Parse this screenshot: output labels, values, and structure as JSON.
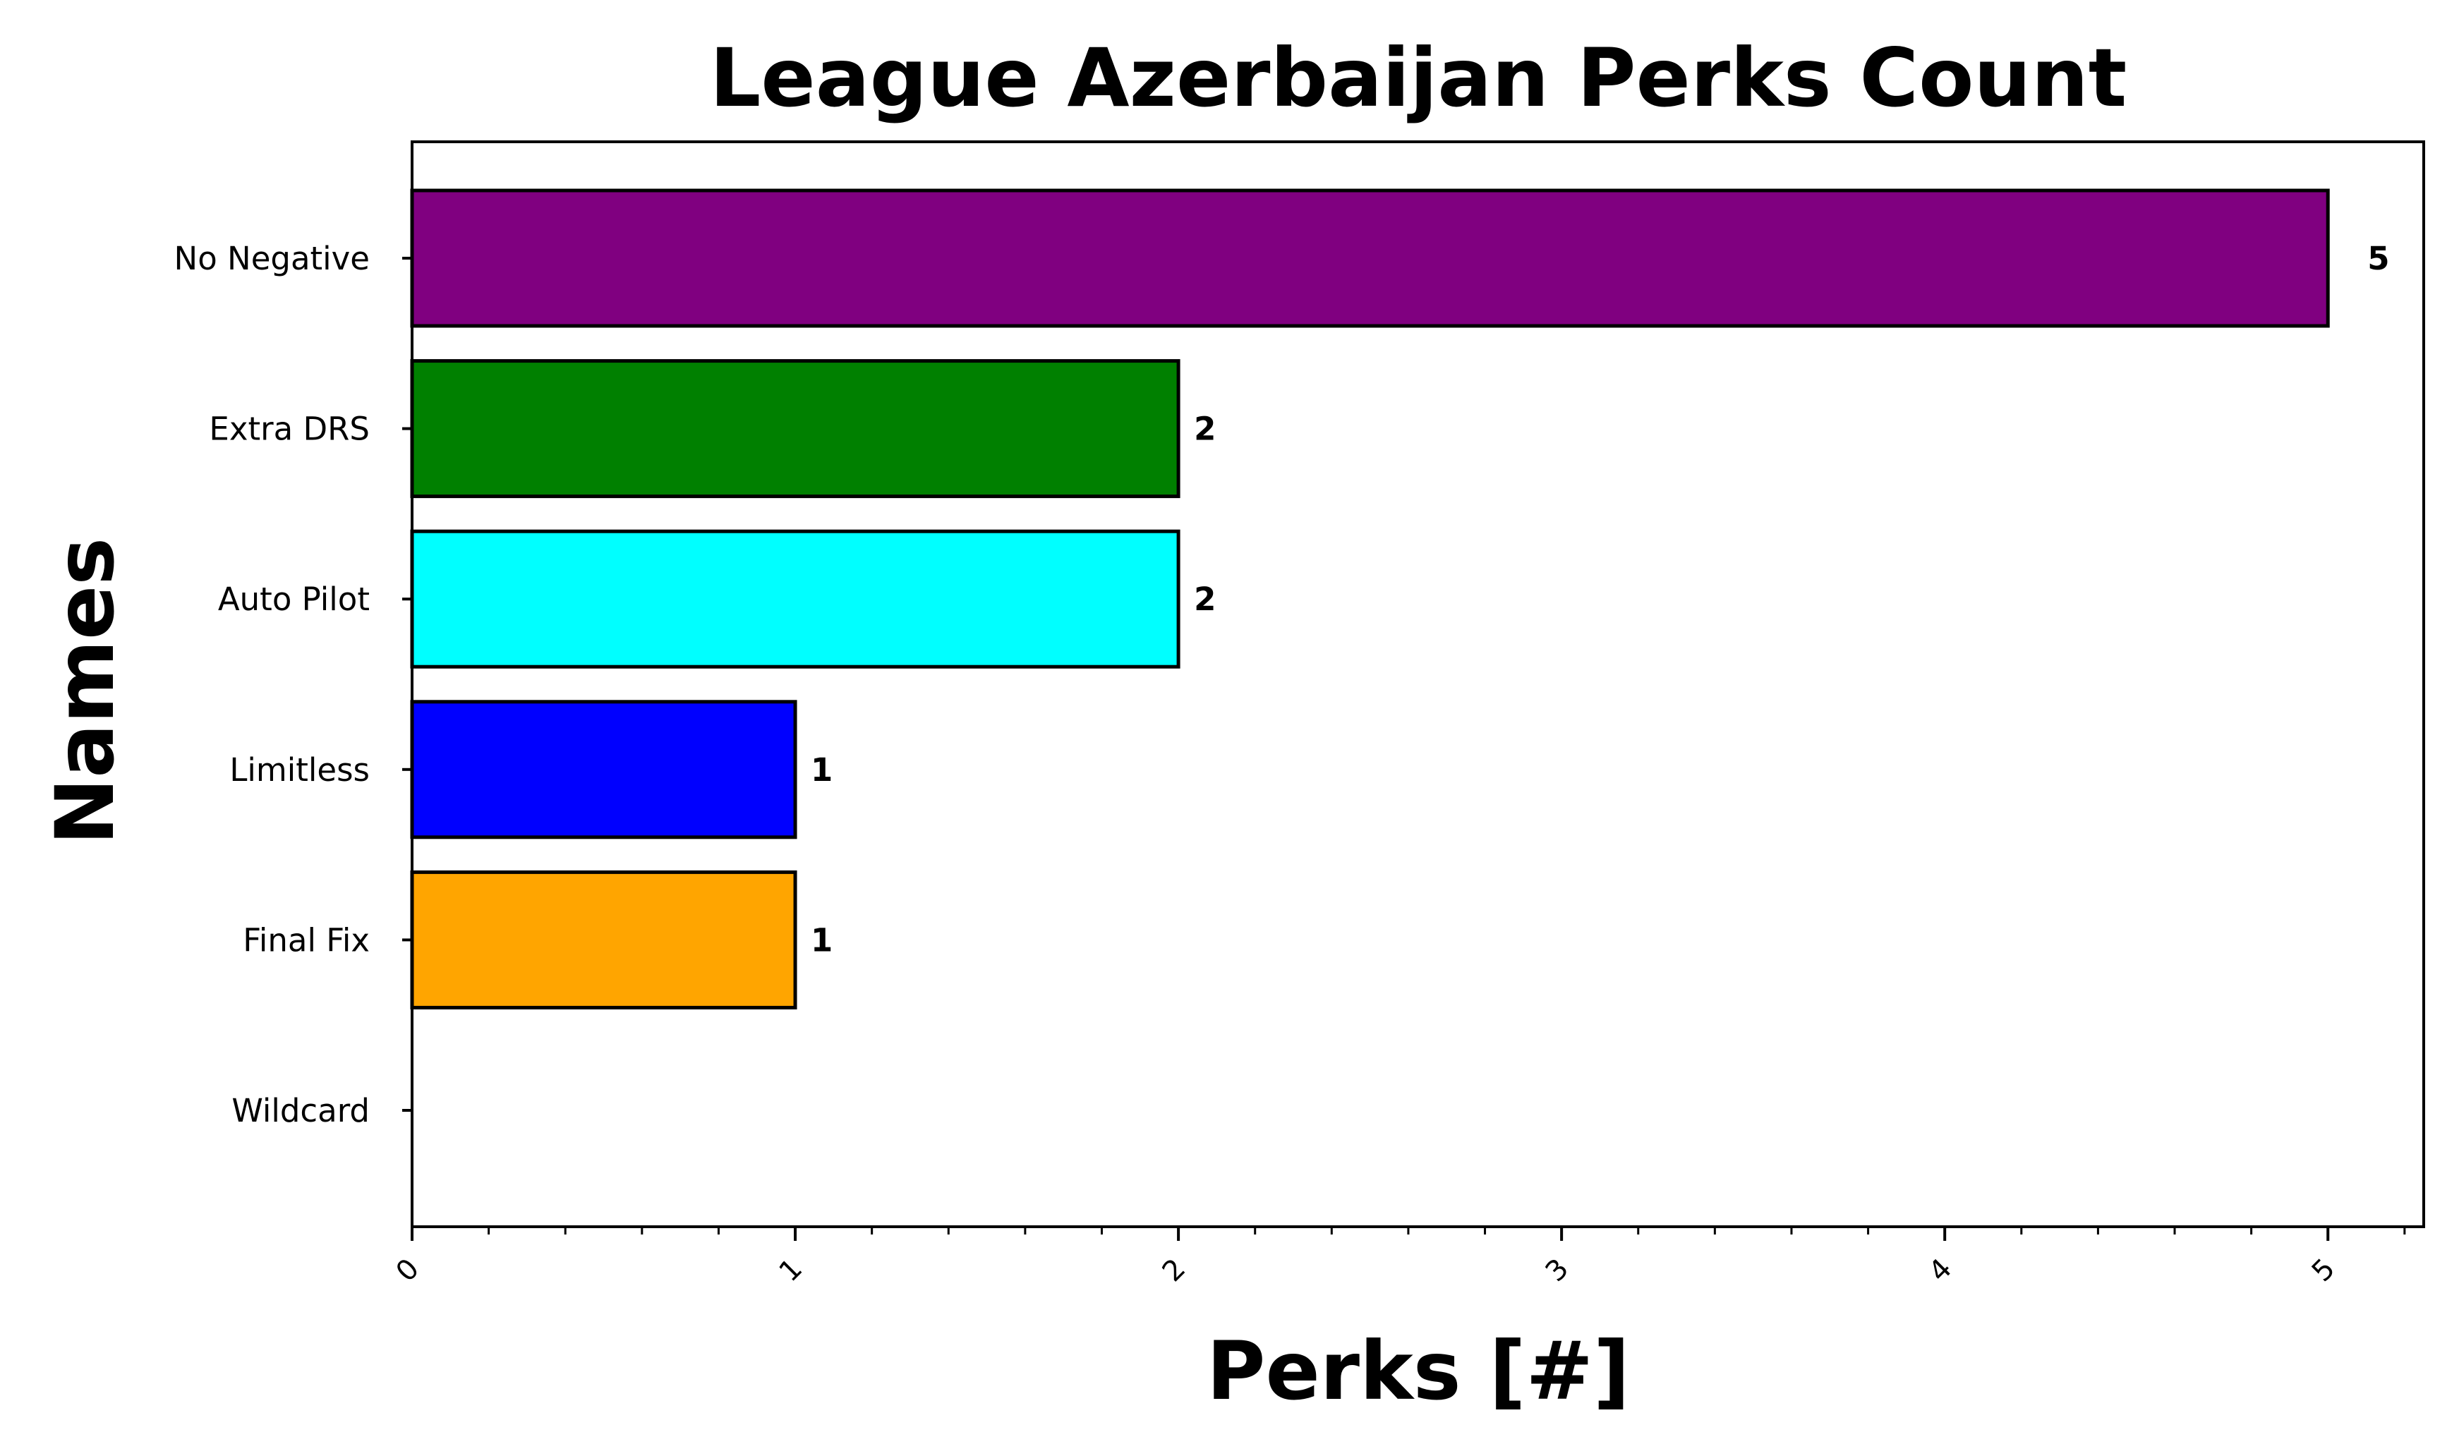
{
  "chart_data": {
    "type": "bar",
    "orientation": "horizontal",
    "title": "League Azerbaijan Perks Count",
    "xlabel": "Perks [#]",
    "ylabel": "Names",
    "categories": [
      "No Negative",
      "Extra DRS",
      "Auto Pilot",
      "Limitless",
      "Final Fix",
      "Wildcard"
    ],
    "values": [
      5,
      2,
      2,
      1,
      1,
      0
    ],
    "value_labels": [
      "5",
      "2",
      "2",
      "1",
      "1",
      ""
    ],
    "colors": [
      "#800080",
      "#008000",
      "#00ffff",
      "#0000ff",
      "#ffa500",
      "#ffffff"
    ],
    "xlim": [
      0,
      5.25
    ],
    "xticks": [
      0,
      1,
      2,
      3,
      4,
      5
    ],
    "xtick_labels": [
      "0",
      "1",
      "2",
      "3",
      "4",
      "5"
    ],
    "grid": false,
    "legend": "none"
  }
}
